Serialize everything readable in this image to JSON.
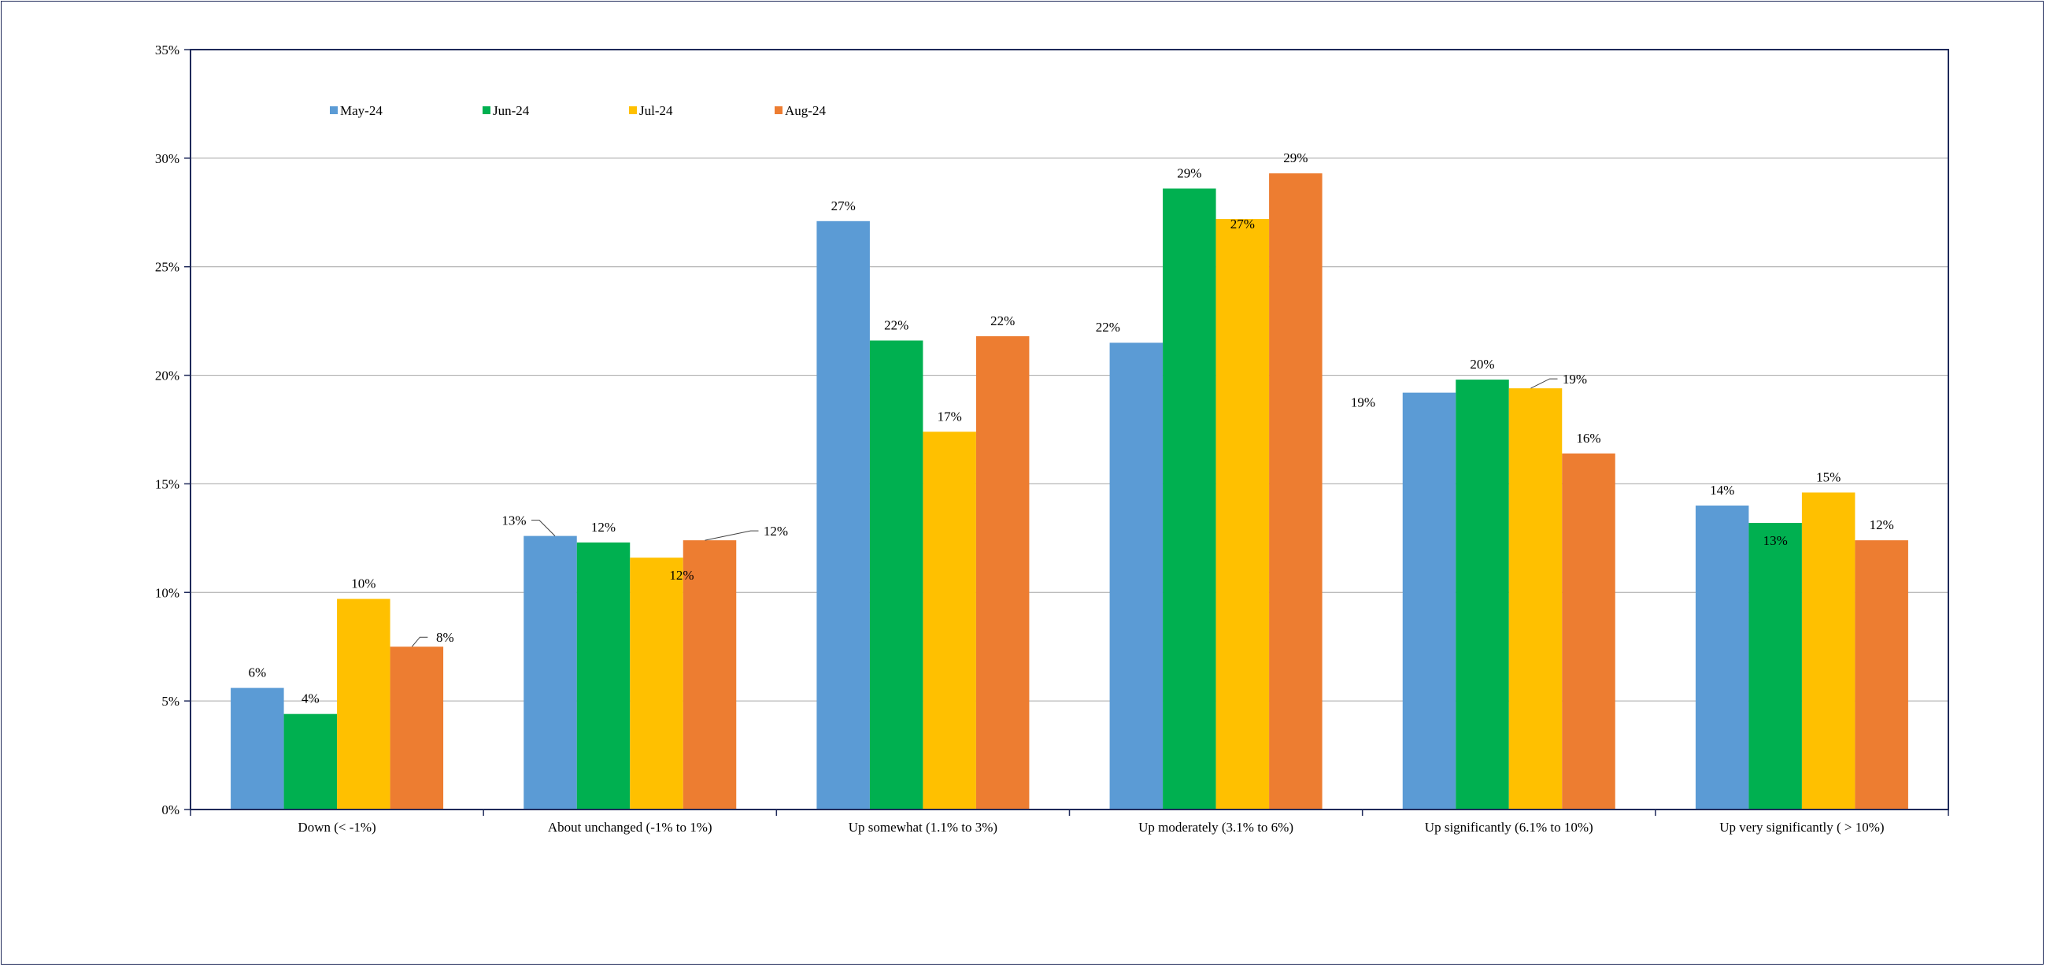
{
  "chart_data": {
    "type": "bar",
    "categories": [
      "Down (< -1%)",
      "About unchanged (-1% to 1%)",
      "Up somewhat (1.1% to 3%)",
      "Up moderately (3.1% to 6%)",
      "Up significantly (6.1% to 10%)",
      "Up very significantly ( > 10%)"
    ],
    "series": [
      {
        "name": "May-24",
        "color": "#5b9bd5",
        "values": [
          5.6,
          12.6,
          27.1,
          21.5,
          19.2,
          14.0
        ],
        "labels": [
          "6%",
          "13%",
          "27%",
          "22%",
          "19%",
          "14%"
        ]
      },
      {
        "name": "Jun-24",
        "color": "#00b050",
        "values": [
          4.4,
          12.3,
          21.6,
          28.6,
          19.8,
          13.2
        ],
        "labels": [
          "4%",
          "12%",
          "22%",
          "29%",
          "20%",
          "13%"
        ]
      },
      {
        "name": "Jul-24",
        "color": "#ffc000",
        "values": [
          9.7,
          11.6,
          17.4,
          27.2,
          19.4,
          14.6
        ],
        "labels": [
          "10%",
          "12%",
          "17%",
          "27%",
          "19%",
          "15%"
        ]
      },
      {
        "name": "Aug-24",
        "color": "#ed7d31",
        "values": [
          7.5,
          12.4,
          21.8,
          29.3,
          16.4,
          12.4
        ],
        "labels": [
          "8%",
          "12%",
          "22%",
          "29%",
          "16%",
          "12%"
        ]
      }
    ],
    "yticks": [
      "0%",
      "5%",
      "10%",
      "15%",
      "20%",
      "25%",
      "30%",
      "35%"
    ],
    "ylim": [
      0,
      35
    ],
    "title": "",
    "xlabel": "",
    "ylabel": "",
    "grid": true,
    "legend": "top-left"
  }
}
